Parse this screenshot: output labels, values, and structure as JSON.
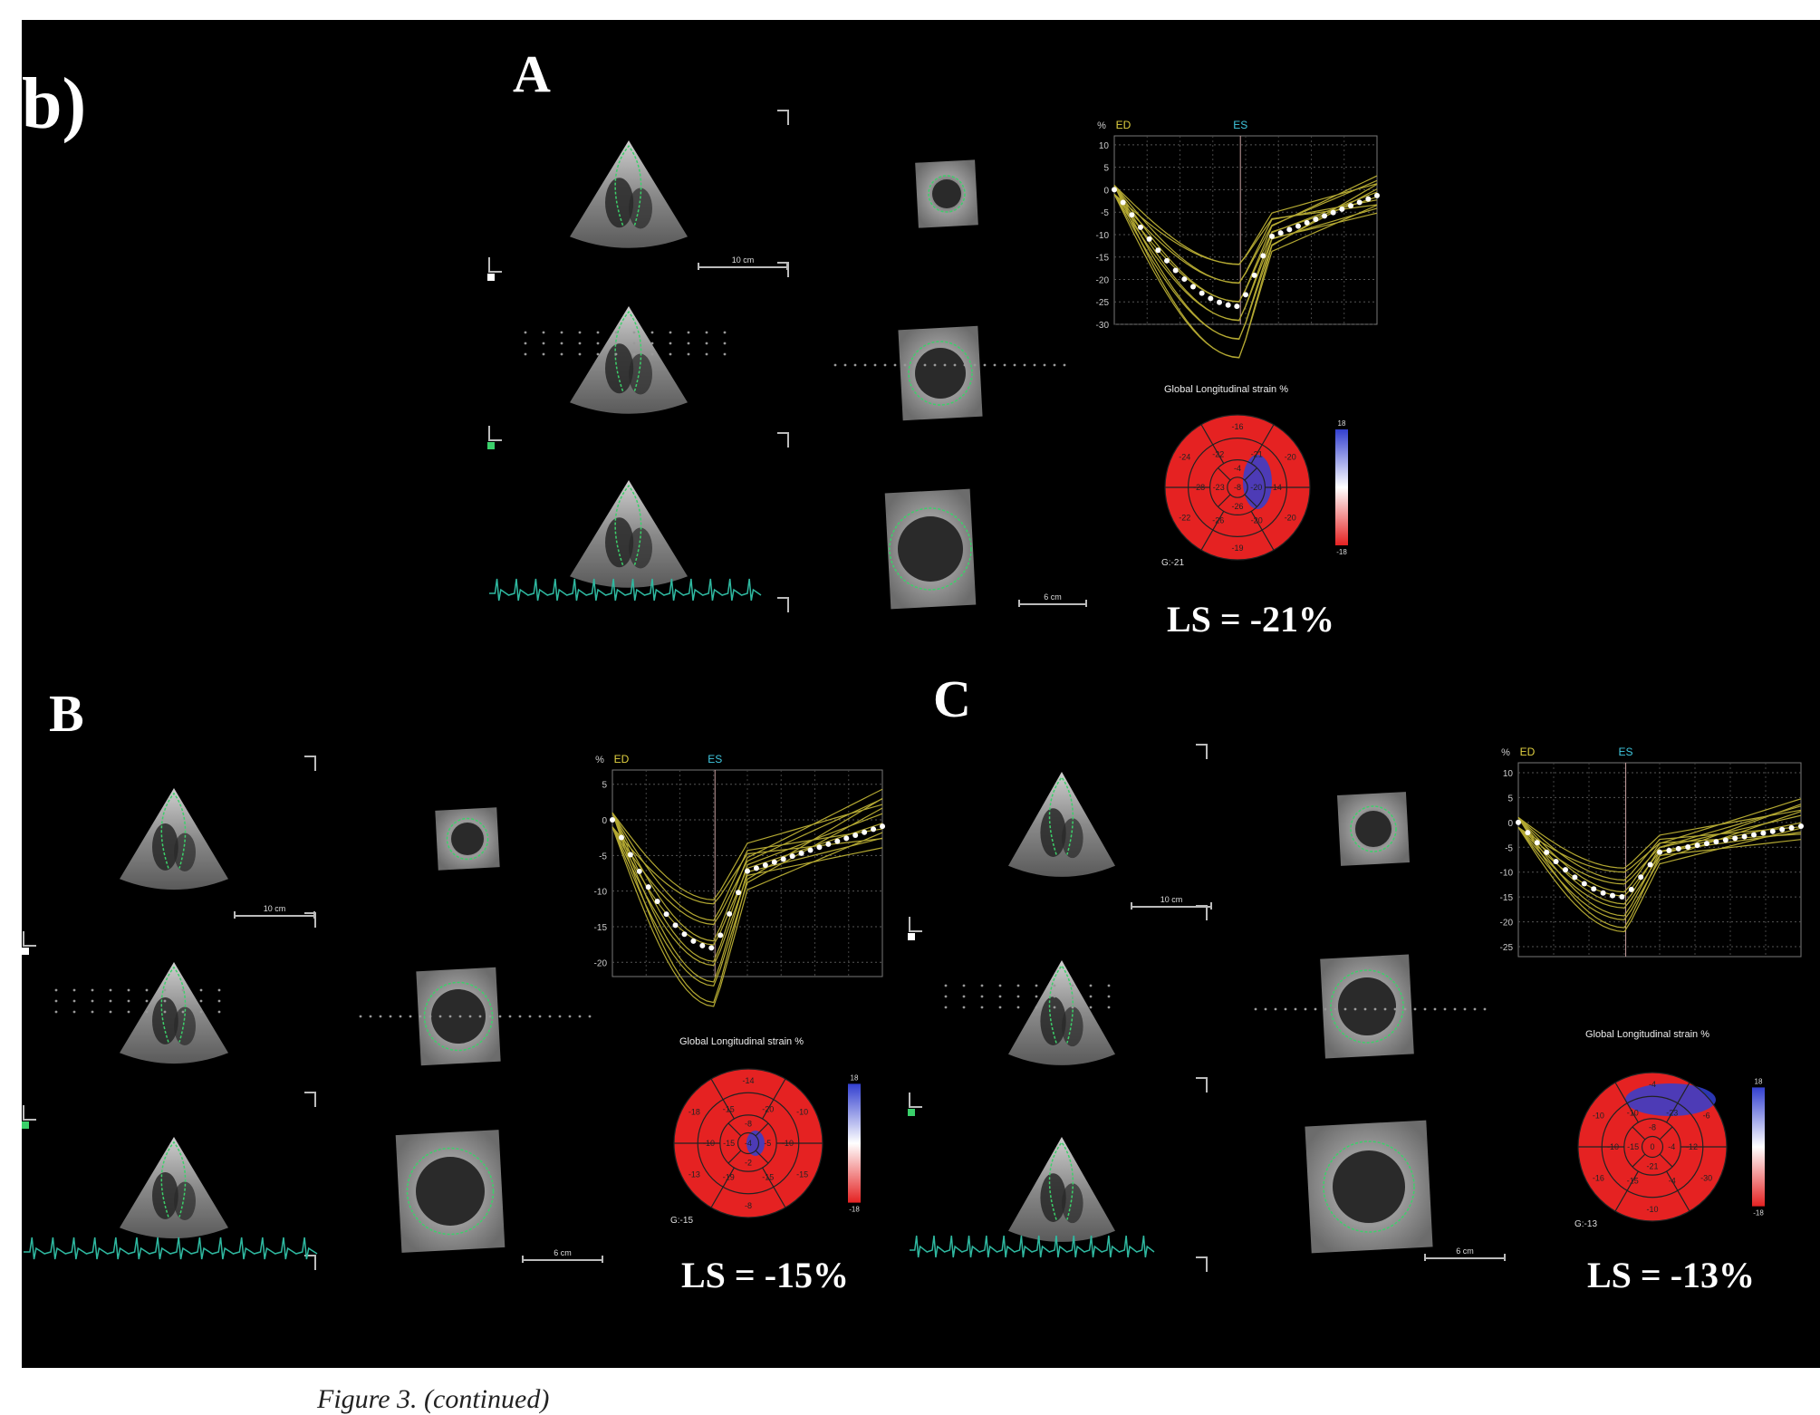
{
  "figure_label": "b)",
  "caption": "Figure 3. (continued)",
  "panels": [
    {
      "label": "A",
      "ls_text": "LS = -21%",
      "chart_title": "Global Longitudinal strain %",
      "scale_apical": "10 cm",
      "scale_short_axis": "6 cm",
      "bullseye_global": "G:-21",
      "bullseye_scale_max": "18",
      "bullseye_scale_min": "-18",
      "bullseye_values": {
        "outer": [
          "-16",
          "-20",
          "-20",
          "-19",
          "-22",
          "-24"
        ],
        "middle": [
          "-21",
          "-14",
          "-20",
          "-26",
          "-28",
          "-22"
        ],
        "inner": [
          "-4",
          "-20",
          "-26",
          "-23"
        ],
        "apex": "-8"
      },
      "strain_curve": {
        "y_axis_label": "%",
        "ed_label": "ED",
        "es_label": "ES",
        "y_ticks": [
          "10",
          "5",
          "0",
          "-5",
          "-10",
          "-15",
          "-20",
          "-25",
          "-30"
        ]
      }
    },
    {
      "label": "B",
      "ls_text": "LS = -15%",
      "chart_title": "Global Longitudinal strain %",
      "scale_apical": "10 cm",
      "scale_short_axis": "6 cm",
      "bullseye_global": "G:-15",
      "bullseye_scale_max": "18",
      "bullseye_scale_min": "-18",
      "bullseye_values": {
        "outer": [
          "-14",
          "-10",
          "-15",
          "-8",
          "-13",
          "-18"
        ],
        "middle": [
          "-20",
          "-10",
          "-15",
          "-19",
          "-10",
          "-15"
        ],
        "inner": [
          "-8",
          "-5",
          "-2",
          "-15"
        ],
        "apex": "-4"
      },
      "strain_curve": {
        "y_axis_label": "%",
        "ed_label": "ED",
        "es_label": "ES",
        "y_ticks": [
          "5",
          "0",
          "-5",
          "-10",
          "-15",
          "-20"
        ]
      }
    },
    {
      "label": "C",
      "ls_text": "LS = -13%",
      "chart_title": "Global Longitudinal strain %",
      "scale_apical": "10 cm",
      "scale_short_axis": "6 cm",
      "bullseye_global": "G:-13",
      "bullseye_scale_max": "18",
      "bullseye_scale_min": "-18",
      "bullseye_values": {
        "outer": [
          "-4",
          "-6",
          "-30",
          "-10",
          "-16",
          "-10"
        ],
        "middle": [
          "-23",
          "-12",
          "-4",
          "-15",
          "-10",
          "-10"
        ],
        "inner": [
          "-8",
          "-4",
          "-21",
          "-15"
        ],
        "apex": "0"
      },
      "strain_curve": {
        "y_axis_label": "%",
        "ed_label": "ED",
        "es_label": "ES",
        "y_ticks": [
          "10",
          "5",
          "0",
          "-5",
          "-10",
          "-15",
          "-20",
          "-25"
        ]
      }
    }
  ],
  "colors": {
    "background": "#000000",
    "contour": "#3cd06a",
    "segment_curves": "#b3a832",
    "average_curve": "#ffffff",
    "bullseye_negative": "#e52222",
    "bullseye_positive": "#3340d0",
    "ecg": "#2fb8a0",
    "ed_marker": "#e0d040",
    "es_marker": "#40c8e0"
  }
}
